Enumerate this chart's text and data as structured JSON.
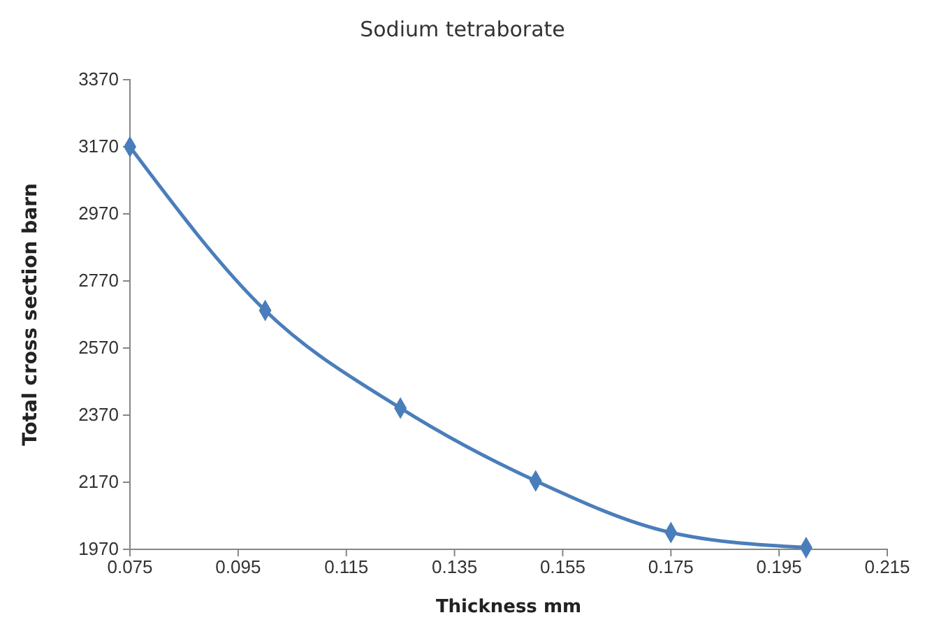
{
  "chart_data": {
    "type": "line",
    "title": "Sodium tetraborate",
    "xlabel": "Thickness mm",
    "ylabel": "Total cross section barn",
    "x": [
      0.075,
      0.1,
      0.125,
      0.15,
      0.175,
      0.2
    ],
    "series": [
      {
        "color": "#4a7ebb",
        "values": [
          3170,
          2682,
          2391,
          2174,
          2020,
          1975
        ]
      }
    ],
    "xlim": [
      0.075,
      0.215
    ],
    "xticks": [
      0.075,
      0.095,
      0.115,
      0.135,
      0.155,
      0.175,
      0.195,
      0.215
    ],
    "ylim": [
      1970,
      3370
    ],
    "yticks": [
      1970,
      2170,
      2370,
      2570,
      2770,
      2970,
      3170,
      3370
    ],
    "grid": false,
    "marker": "diamond",
    "line_style": "solid"
  }
}
